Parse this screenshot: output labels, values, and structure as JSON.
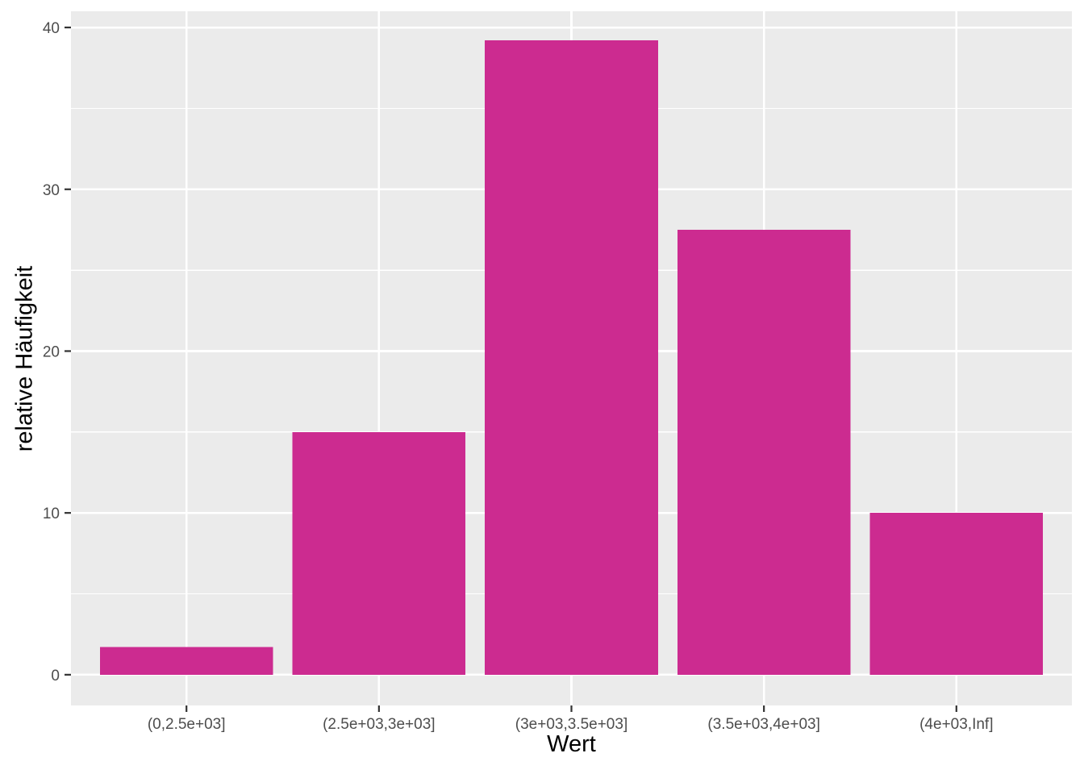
{
  "chart_data": {
    "type": "bar",
    "style": "ggplot2-histogram",
    "title": "",
    "xlabel": "Wert",
    "ylabel": "relative Häufigkeit",
    "categories": [
      "(0,2.5e+03]",
      "(2.5e+03,3e+03]",
      "(3e+03,3.5e+03]",
      "(3.5e+03,4e+03]",
      "(4e+03,Inf]"
    ],
    "values": [
      1.7,
      15,
      39.2,
      27.5,
      10
    ],
    "y_major_ticks": [
      0,
      10,
      20,
      30,
      40
    ],
    "y_minor_ticks": [
      5,
      15,
      25,
      35
    ],
    "ylim": [
      -1.9,
      41
    ],
    "grid": "major-and-minor-horizontal, major-vertical-at-category-centers",
    "legend": "none",
    "colors": {
      "bar_fill": "#CC2B90",
      "panel_background": "#EBEBEB",
      "gridline": "#FFFFFF",
      "tick_label": "#4D4D4D",
      "tick_mark": "#333333",
      "axis_title": "#000000",
      "page_background": "#FFFFFF"
    }
  }
}
